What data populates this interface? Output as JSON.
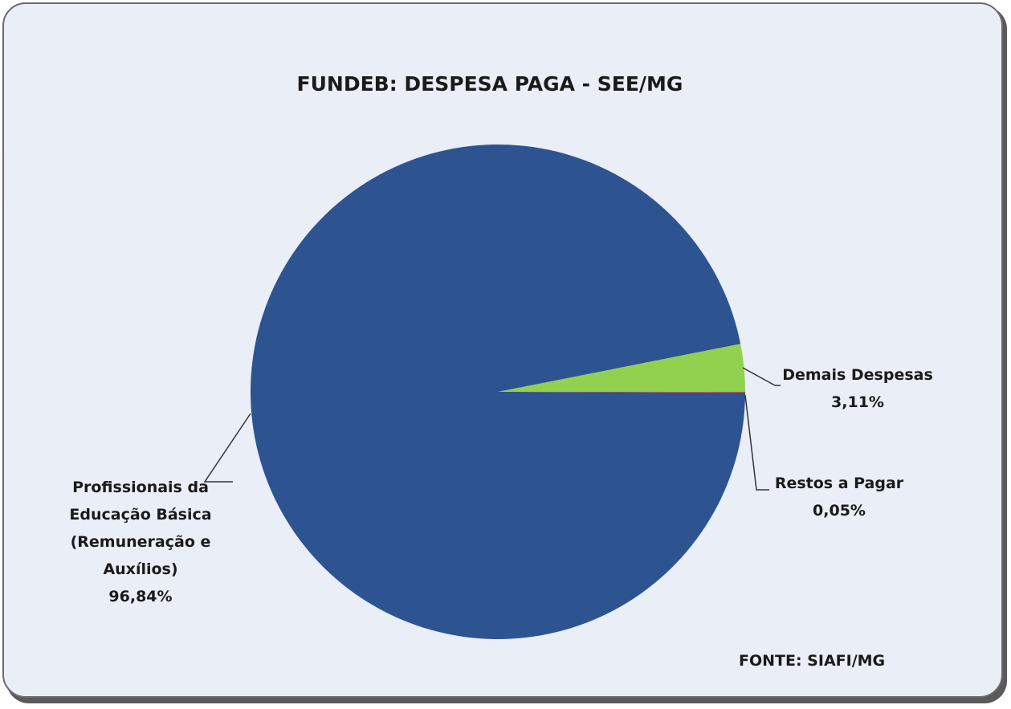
{
  "chart_data": {
    "type": "pie",
    "title": "FUNDEB: DESPESA PAGA - SEE/MG",
    "categories": [
      "Demais Despesas",
      "Profissionais da Educação Básica (Remuneração e Auxílios)",
      "Restos a Pagar"
    ],
    "values": [
      3.11,
      96.84,
      0.05
    ],
    "value_labels": [
      "3,11%",
      "96,84%",
      "0,05%"
    ],
    "colors": [
      "#92d050",
      "#2e5391",
      "#c0504d"
    ],
    "annotation": "FONTE: SIAFI/MG"
  }
}
